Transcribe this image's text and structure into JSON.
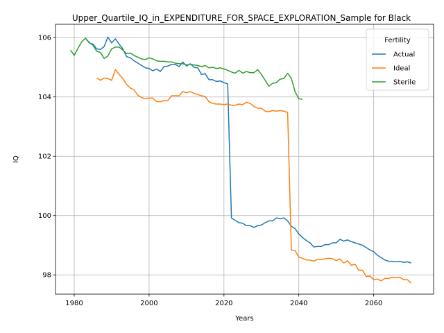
{
  "chart_data": {
    "type": "line",
    "title": "Upper_Quartile_IQ_in_EXPENDITURE_FOR_SPACE_EXPLORATION_Sample for Black",
    "xlabel": "Years",
    "ylabel": "IQ",
    "xlim": [
      1975,
      2076
    ],
    "ylim": [
      97.35,
      106.45
    ],
    "xticks": [
      1980,
      2000,
      2020,
      2040,
      2060
    ],
    "yticks": [
      98,
      100,
      102,
      104,
      106
    ],
    "grid": true,
    "legend": {
      "title": "Fertility",
      "placement": "top-right"
    },
    "series": [
      {
        "name": "Actual",
        "color": "#1f77b4",
        "points": [
          [
            1983,
            105.98
          ],
          [
            1984,
            105.82
          ],
          [
            1985,
            105.78
          ],
          [
            1986,
            105.62
          ],
          [
            1987,
            105.6
          ],
          [
            1988,
            105.7
          ],
          [
            1989,
            106.02
          ],
          [
            1990,
            105.82
          ],
          [
            1991,
            105.96
          ],
          [
            1992,
            105.78
          ],
          [
            1993,
            105.62
          ],
          [
            1994,
            105.36
          ],
          [
            1995,
            105.32
          ],
          [
            1996,
            105.22
          ],
          [
            1997,
            105.14
          ],
          [
            1998,
            105.06
          ],
          [
            1999,
            104.98
          ],
          [
            2000,
            104.96
          ],
          [
            2001,
            104.88
          ],
          [
            2002,
            104.94
          ],
          [
            2003,
            104.86
          ],
          [
            2004,
            105.02
          ],
          [
            2005,
            105.04
          ],
          [
            2006,
            105.1
          ],
          [
            2007,
            105.1
          ],
          [
            2008,
            105.02
          ],
          [
            2009,
            105.18
          ],
          [
            2010,
            105.04
          ],
          [
            2011,
            105.12
          ],
          [
            2012,
            105.0
          ],
          [
            2013,
            104.98
          ],
          [
            2014,
            104.76
          ],
          [
            2015,
            104.78
          ],
          [
            2016,
            104.58
          ],
          [
            2017,
            104.58
          ],
          [
            2018,
            104.52
          ],
          [
            2019,
            104.54
          ],
          [
            2020,
            104.48
          ],
          [
            2021,
            104.44
          ],
          [
            2022,
            99.92
          ],
          [
            2023,
            99.84
          ],
          [
            2024,
            99.76
          ],
          [
            2025,
            99.74
          ],
          [
            2026,
            99.66
          ],
          [
            2027,
            99.66
          ],
          [
            2028,
            99.6
          ],
          [
            2029,
            99.66
          ],
          [
            2030,
            99.68
          ],
          [
            2031,
            99.76
          ],
          [
            2032,
            99.82
          ],
          [
            2033,
            99.82
          ],
          [
            2034,
            99.92
          ],
          [
            2035,
            99.9
          ],
          [
            2036,
            99.92
          ],
          [
            2037,
            99.82
          ],
          [
            2038,
            99.64
          ],
          [
            2039,
            99.56
          ],
          [
            2040,
            99.38
          ],
          [
            2041,
            99.26
          ],
          [
            2042,
            99.16
          ],
          [
            2043,
            99.08
          ],
          [
            2044,
            98.94
          ],
          [
            2045,
            98.96
          ],
          [
            2046,
            98.96
          ],
          [
            2047,
            99.02
          ],
          [
            2048,
            99.02
          ],
          [
            2049,
            99.08
          ],
          [
            2050,
            99.08
          ],
          [
            2051,
            99.2
          ],
          [
            2052,
            99.14
          ],
          [
            2053,
            99.18
          ],
          [
            2054,
            99.12
          ],
          [
            2055,
            99.08
          ],
          [
            2056,
            99.04
          ],
          [
            2057,
            99.0
          ],
          [
            2058,
            98.92
          ],
          [
            2059,
            98.84
          ],
          [
            2060,
            98.78
          ],
          [
            2061,
            98.66
          ],
          [
            2062,
            98.58
          ],
          [
            2063,
            98.5
          ],
          [
            2064,
            98.46
          ],
          [
            2065,
            98.46
          ],
          [
            2066,
            98.44
          ],
          [
            2067,
            98.46
          ],
          [
            2068,
            98.42
          ],
          [
            2069,
            98.44
          ],
          [
            2070,
            98.4
          ]
        ]
      },
      {
        "name": "Ideal",
        "color": "#ff7f0e",
        "points": [
          [
            1986,
            104.64
          ],
          [
            1987,
            104.56
          ],
          [
            1988,
            104.64
          ],
          [
            1989,
            104.62
          ],
          [
            1990,
            104.56
          ],
          [
            1991,
            104.92
          ],
          [
            1992,
            104.76
          ],
          [
            1993,
            104.62
          ],
          [
            1994,
            104.42
          ],
          [
            1995,
            104.3
          ],
          [
            1996,
            104.24
          ],
          [
            1997,
            104.06
          ],
          [
            1998,
            103.98
          ],
          [
            1999,
            103.94
          ],
          [
            2000,
            103.96
          ],
          [
            2001,
            103.96
          ],
          [
            2002,
            103.84
          ],
          [
            2003,
            103.84
          ],
          [
            2004,
            103.88
          ],
          [
            2005,
            103.88
          ],
          [
            2006,
            104.04
          ],
          [
            2007,
            104.04
          ],
          [
            2008,
            104.04
          ],
          [
            2009,
            104.18
          ],
          [
            2010,
            104.14
          ],
          [
            2011,
            104.18
          ],
          [
            2012,
            104.12
          ],
          [
            2013,
            104.08
          ],
          [
            2014,
            104.04
          ],
          [
            2015,
            104.02
          ],
          [
            2016,
            103.84
          ],
          [
            2017,
            103.78
          ],
          [
            2018,
            103.76
          ],
          [
            2019,
            103.76
          ],
          [
            2020,
            103.74
          ],
          [
            2021,
            103.76
          ],
          [
            2022,
            103.72
          ],
          [
            2023,
            103.72
          ],
          [
            2024,
            103.76
          ],
          [
            2025,
            103.74
          ],
          [
            2026,
            103.82
          ],
          [
            2027,
            103.78
          ],
          [
            2028,
            103.68
          ],
          [
            2029,
            103.62
          ],
          [
            2030,
            103.62
          ],
          [
            2031,
            103.52
          ],
          [
            2032,
            103.5
          ],
          [
            2033,
            103.54
          ],
          [
            2034,
            103.52
          ],
          [
            2035,
            103.54
          ],
          [
            2036,
            103.52
          ],
          [
            2037,
            103.48
          ],
          [
            2038,
            98.84
          ],
          [
            2039,
            98.82
          ],
          [
            2040,
            98.6
          ],
          [
            2041,
            98.56
          ],
          [
            2042,
            98.5
          ],
          [
            2043,
            98.5
          ],
          [
            2044,
            98.46
          ],
          [
            2045,
            98.52
          ],
          [
            2046,
            98.52
          ],
          [
            2047,
            98.54
          ],
          [
            2048,
            98.56
          ],
          [
            2049,
            98.54
          ],
          [
            2050,
            98.48
          ],
          [
            2051,
            98.54
          ],
          [
            2052,
            98.4
          ],
          [
            2053,
            98.48
          ],
          [
            2054,
            98.32
          ],
          [
            2055,
            98.36
          ],
          [
            2056,
            98.16
          ],
          [
            2057,
            98.16
          ],
          [
            2058,
            97.94
          ],
          [
            2059,
            97.96
          ],
          [
            2060,
            97.84
          ],
          [
            2061,
            97.86
          ],
          [
            2062,
            97.8
          ],
          [
            2063,
            97.88
          ],
          [
            2064,
            97.88
          ],
          [
            2065,
            97.92
          ],
          [
            2066,
            97.9
          ],
          [
            2067,
            97.92
          ],
          [
            2068,
            97.84
          ],
          [
            2069,
            97.84
          ],
          [
            2070,
            97.72
          ]
        ]
      },
      {
        "name": "Sterile",
        "color": "#2ca02c",
        "points": [
          [
            1979,
            105.58
          ],
          [
            1980,
            105.4
          ],
          [
            1981,
            105.64
          ],
          [
            1982,
            105.86
          ],
          [
            1983,
            105.98
          ],
          [
            1984,
            105.84
          ],
          [
            1985,
            105.74
          ],
          [
            1986,
            105.54
          ],
          [
            1987,
            105.5
          ],
          [
            1988,
            105.3
          ],
          [
            1989,
            105.38
          ],
          [
            1990,
            105.62
          ],
          [
            1991,
            105.68
          ],
          [
            1992,
            105.68
          ],
          [
            1993,
            105.58
          ],
          [
            1994,
            105.46
          ],
          [
            1995,
            105.48
          ],
          [
            1996,
            105.4
          ],
          [
            1997,
            105.34
          ],
          [
            1998,
            105.28
          ],
          [
            1999,
            105.26
          ],
          [
            2000,
            105.32
          ],
          [
            2001,
            105.28
          ],
          [
            2002,
            105.22
          ],
          [
            2003,
            105.2
          ],
          [
            2004,
            105.2
          ],
          [
            2005,
            105.18
          ],
          [
            2006,
            105.18
          ],
          [
            2007,
            105.14
          ],
          [
            2008,
            105.12
          ],
          [
            2009,
            105.12
          ],
          [
            2010,
            105.08
          ],
          [
            2011,
            105.1
          ],
          [
            2012,
            105.08
          ],
          [
            2013,
            105.06
          ],
          [
            2014,
            105.02
          ],
          [
            2015,
            105.06
          ],
          [
            2016,
            104.98
          ],
          [
            2017,
            105.0
          ],
          [
            2018,
            104.96
          ],
          [
            2019,
            104.98
          ],
          [
            2020,
            104.94
          ],
          [
            2021,
            104.9
          ],
          [
            2022,
            104.84
          ],
          [
            2023,
            104.8
          ],
          [
            2024,
            104.9
          ],
          [
            2025,
            104.8
          ],
          [
            2026,
            104.86
          ],
          [
            2027,
            104.82
          ],
          [
            2028,
            104.82
          ],
          [
            2029,
            104.92
          ],
          [
            2030,
            104.76
          ],
          [
            2031,
            104.56
          ],
          [
            2032,
            104.36
          ],
          [
            2033,
            104.46
          ],
          [
            2034,
            104.48
          ],
          [
            2035,
            104.6
          ],
          [
            2036,
            104.62
          ],
          [
            2037,
            104.8
          ],
          [
            2038,
            104.62
          ],
          [
            2039,
            104.18
          ],
          [
            2040,
            103.94
          ],
          [
            2041,
            103.92
          ]
        ]
      }
    ]
  }
}
